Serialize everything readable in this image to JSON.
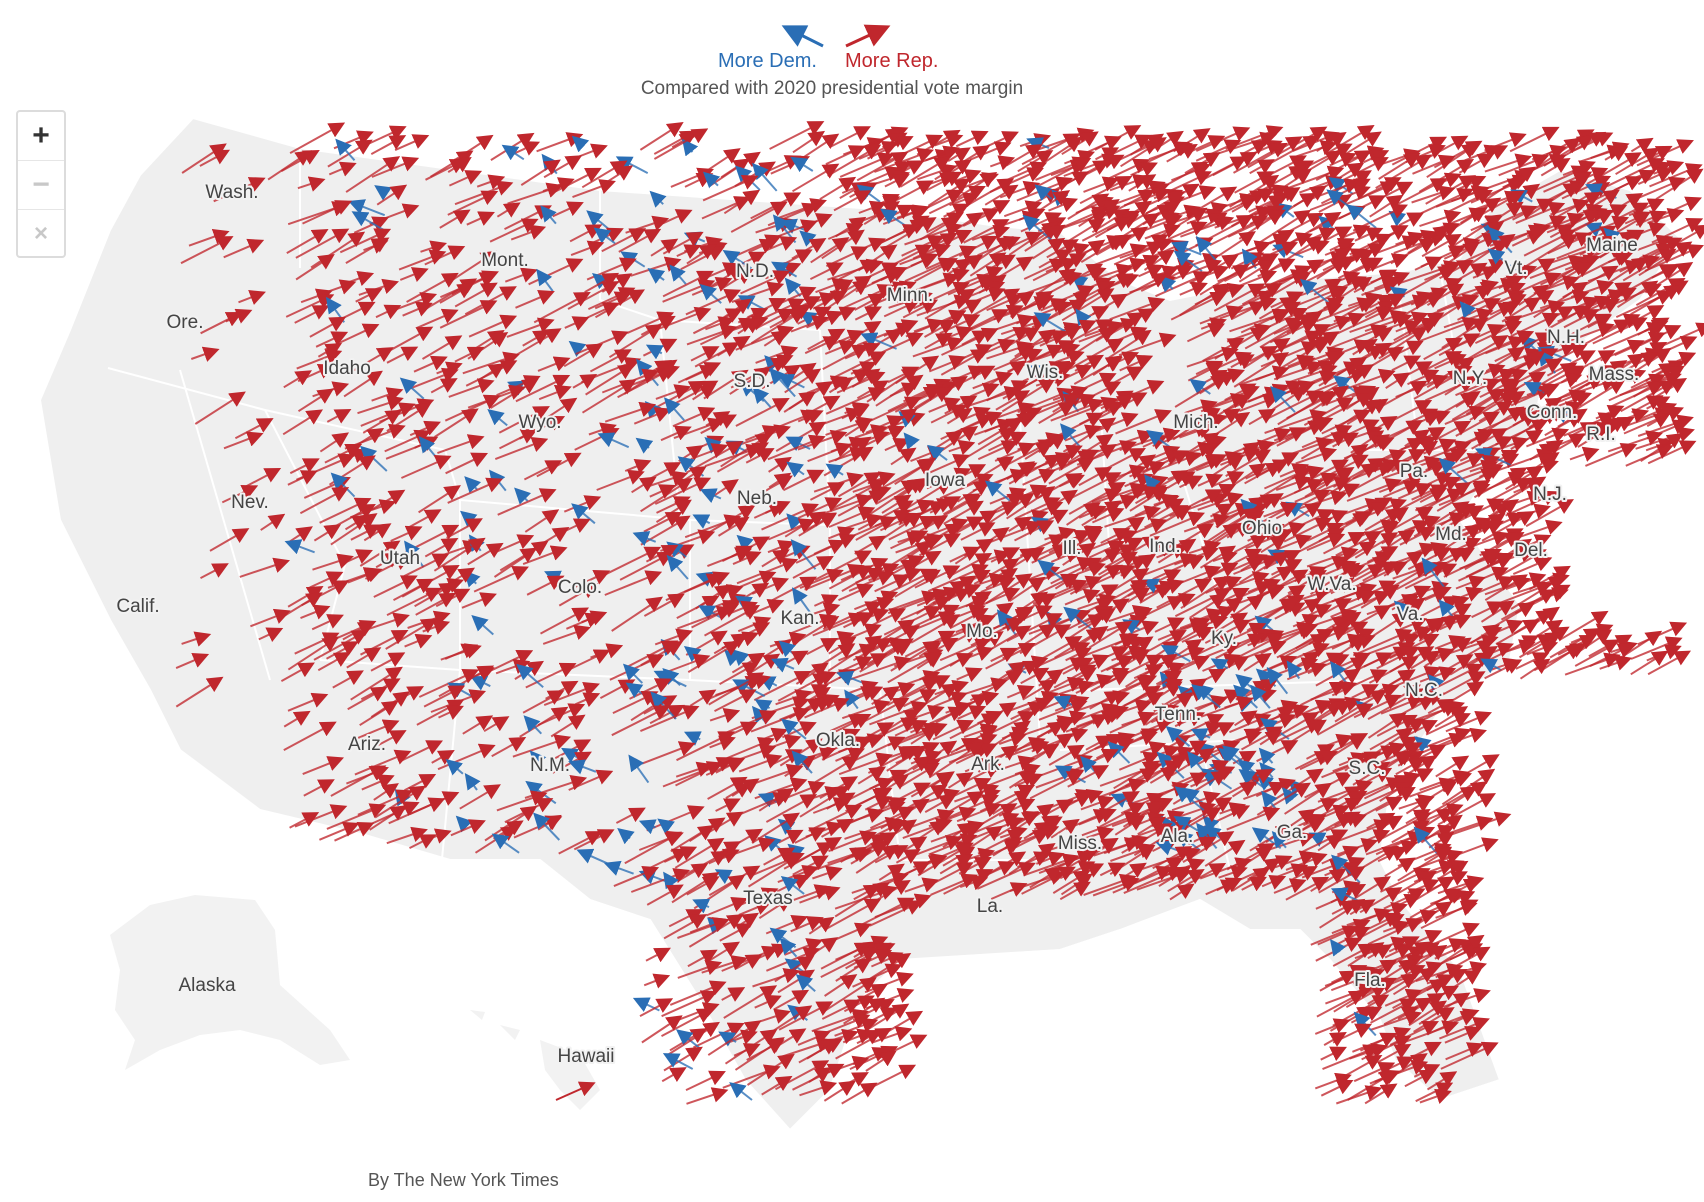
{
  "legend": {
    "dem_label": "More Dem.",
    "rep_label": "More Rep.",
    "subtitle": "Compared with 2020 presidential vote margin",
    "dem_color": "#2a6eb5",
    "rep_color": "#c0272d"
  },
  "zoom": {
    "in_label": "+",
    "out_label": "−",
    "reset_label": "×"
  },
  "states": [
    "Wash.",
    "Ore.",
    "Calif.",
    "Idaho",
    "Mont.",
    "Nev.",
    "Utah",
    "Ariz.",
    "Wyo.",
    "Colo.",
    "N.M.",
    "N.D.",
    "S.D.",
    "Neb.",
    "Kan.",
    "Okla.",
    "Texas",
    "Minn.",
    "Iowa",
    "Mo.",
    "Ark.",
    "La.",
    "Wis.",
    "Ill.",
    "Mich.",
    "Ind.",
    "Ohio",
    "Ky.",
    "Tenn.",
    "Miss.",
    "Ala.",
    "Ga.",
    "Fla.",
    "S.C.",
    "N.C.",
    "Va.",
    "W.Va.",
    "Pa.",
    "N.Y.",
    "Vt.",
    "N.H.",
    "Maine",
    "Mass.",
    "Conn.",
    "R.I.",
    "N.J.",
    "Md.",
    "Del.",
    "Alaska",
    "Hawaii"
  ],
  "credit": "By The New York Times"
}
